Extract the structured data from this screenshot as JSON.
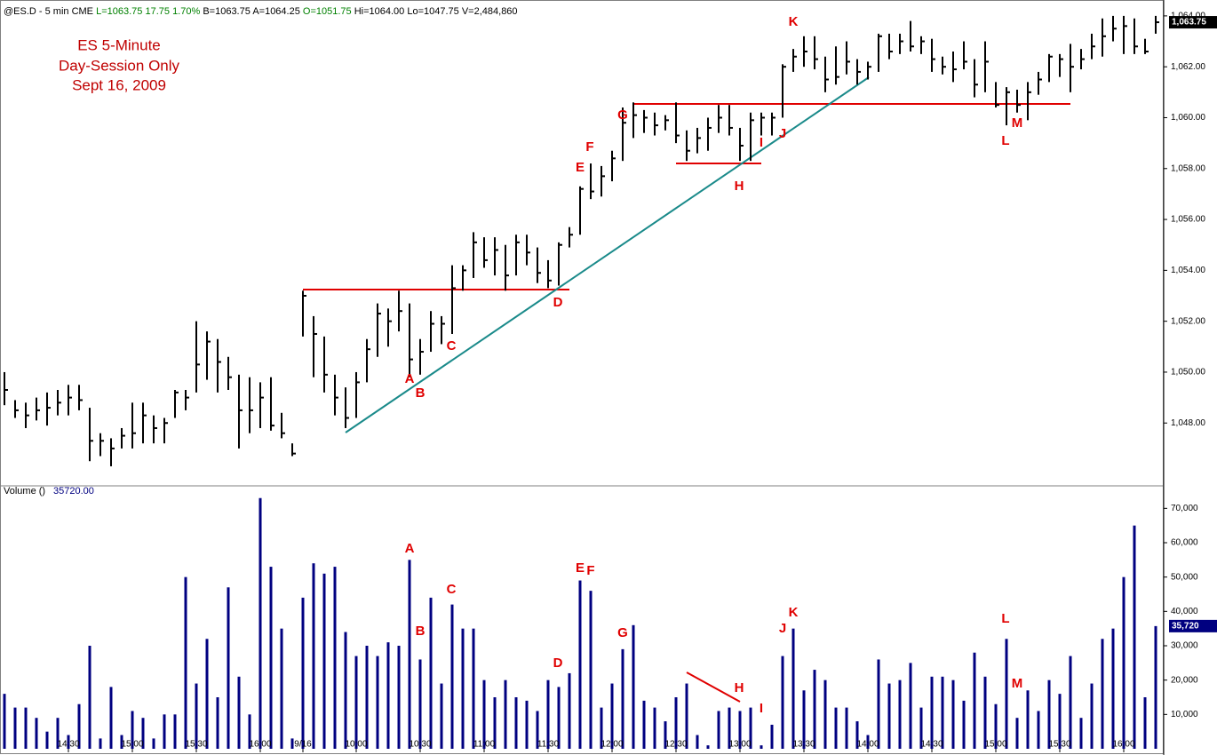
{
  "header": {
    "symbol": "@ES.D - 5 min",
    "exchange": "CME",
    "last": "L=1063.75",
    "change": "17.75",
    "percent": "1.70%",
    "bid": "B=1063.75",
    "ask": "A=1064.25",
    "open": "O=1051.75",
    "high": "Hi=1064.00",
    "low": "Lo=1047.75",
    "volume": "V=2,484,860"
  },
  "chart_data": [
    {
      "type": "ohlc",
      "title": [
        "ES 5-Minute",
        "Day-Session Only",
        "Sept 16, 2009"
      ],
      "color": "#000000",
      "high": [
        1050.0,
        1048.9,
        1048.8,
        1049.0,
        1049.2,
        1049.3,
        1049.5,
        1049.5,
        1048.6,
        1047.6,
        1047.4,
        1047.8,
        1048.8,
        1048.8,
        1048.3,
        1048.2,
        1049.3,
        1049.3,
        1052.0,
        1051.6,
        1051.3,
        1050.6,
        1049.9,
        1049.8,
        1049.6,
        1049.8,
        1048.4,
        1047.2,
        1053.2,
        1052.2,
        1051.4,
        1049.9,
        1049.4,
        1050.0,
        1051.3,
        1052.7,
        1052.5,
        1053.2,
        1052.7,
        1051.3,
        1052.4,
        1052.2,
        1054.2,
        1054.2,
        1055.5,
        1055.3,
        1055.3,
        1055.0,
        1055.4,
        1055.4,
        1054.9,
        1054.4,
        1055.1,
        1055.7,
        1057.3,
        1058.2,
        1058.1,
        1058.7,
        1060.4,
        1060.6,
        1060.3,
        1060.2,
        1060.1,
        1060.6,
        1059.5,
        1059.6,
        1060.0,
        1060.5,
        1060.5,
        1059.6,
        1060.2,
        1060.2,
        1060.2,
        1062.1,
        1062.7,
        1063.2,
        1063.2,
        1062.4,
        1062.8,
        1063.0,
        1062.3,
        1062.2,
        1063.3,
        1063.3,
        1063.3,
        1063.8,
        1063.2,
        1063.1,
        1062.4,
        1062.6,
        1063.0,
        1062.3,
        1063.0,
        1061.4,
        1061.2,
        1061.1,
        1061.4,
        1061.8,
        1062.5,
        1062.5,
        1062.9,
        1062.7,
        1063.3,
        1063.9,
        1064.0,
        1064.0,
        1063.9,
        1063.1,
        1064.0
      ],
      "low": [
        1048.7,
        1048.2,
        1047.8,
        1048.1,
        1047.9,
        1048.3,
        1048.3,
        1048.5,
        1046.5,
        1046.7,
        1046.3,
        1047.0,
        1047.0,
        1047.2,
        1047.2,
        1047.2,
        1048.2,
        1048.5,
        1049.2,
        1049.7,
        1049.2,
        1049.3,
        1047.0,
        1047.6,
        1047.8,
        1047.7,
        1047.4,
        1046.7,
        1051.4,
        1049.8,
        1049.2,
        1048.3,
        1047.8,
        1048.2,
        1049.6,
        1050.6,
        1051.0,
        1051.6,
        1049.8,
        1049.9,
        1050.8,
        1051.1,
        1051.5,
        1053.2,
        1053.7,
        1054.1,
        1053.8,
        1053.2,
        1053.8,
        1054.2,
        1053.5,
        1053.3,
        1053.4,
        1054.9,
        1055.4,
        1056.8,
        1056.9,
        1057.5,
        1058.3,
        1059.2,
        1059.4,
        1059.3,
        1059.5,
        1059.0,
        1058.3,
        1058.6,
        1058.7,
        1059.4,
        1059.3,
        1058.3,
        1058.3,
        1059.3,
        1059.3,
        1060.0,
        1061.8,
        1062.0,
        1061.9,
        1061.0,
        1061.3,
        1061.7,
        1061.3,
        1061.5,
        1061.8,
        1062.3,
        1062.5,
        1062.6,
        1062.5,
        1061.8,
        1061.7,
        1061.4,
        1061.9,
        1060.8,
        1061.0,
        1060.4,
        1059.7,
        1060.2,
        1059.9,
        1060.9,
        1061.4,
        1061.6,
        1061.0,
        1061.9,
        1062.3,
        1062.4,
        1063.0,
        1062.5,
        1062.5,
        1062.5,
        1063.3
      ],
      "close": [
        1049.3,
        1048.5,
        1048.3,
        1048.5,
        1048.6,
        1048.8,
        1049.0,
        1048.9,
        1047.3,
        1047.3,
        1047.0,
        1047.5,
        1047.6,
        1048.3,
        1047.8,
        1048.0,
        1049.2,
        1049.0,
        1050.3,
        1051.2,
        1050.4,
        1049.8,
        1048.5,
        1048.5,
        1049.0,
        1047.9,
        1047.6,
        1046.8,
        1053.0,
        1051.5,
        1049.9,
        1049.0,
        1048.2,
        1049.6,
        1050.9,
        1052.3,
        1052.0,
        1052.4,
        1050.5,
        1050.8,
        1051.9,
        1051.9,
        1053.3,
        1054.0,
        1055.1,
        1054.4,
        1054.8,
        1053.8,
        1055.1,
        1054.7,
        1053.9,
        1053.6,
        1055.0,
        1055.4,
        1057.2,
        1057.1,
        1057.7,
        1058.4,
        1059.8,
        1060.1,
        1060.0,
        1059.7,
        1059.9,
        1059.3,
        1058.7,
        1059.2,
        1059.6,
        1060.0,
        1059.6,
        1058.9,
        1059.9,
        1060.0,
        1060.0,
        1062.0,
        1062.4,
        1062.6,
        1062.3,
        1061.5,
        1061.6,
        1062.2,
        1061.8,
        1062.0,
        1063.2,
        1062.6,
        1063.0,
        1062.8,
        1063.0,
        1062.3,
        1062.0,
        1061.9,
        1062.2,
        1061.3,
        1062.2,
        1060.5,
        1061.0,
        1060.5,
        1061.0,
        1061.5,
        1062.4,
        1062.3,
        1062.0,
        1062.3,
        1062.8,
        1063.2,
        1063.5,
        1063.6,
        1062.8,
        1062.6,
        1063.75
      ],
      "last_value_label": "1,063.75",
      "ylim": [
        1045.6,
        1064.45
      ],
      "yticks": [
        {
          "value": 1048,
          "label": "1,048.00"
        },
        {
          "value": 1050,
          "label": "1,050.00"
        },
        {
          "value": 1052,
          "label": "1,052.00"
        },
        {
          "value": 1054,
          "label": "1,054.00"
        },
        {
          "value": 1056,
          "label": "1,056.00"
        },
        {
          "value": 1058,
          "label": "1,058.00"
        },
        {
          "value": 1060,
          "label": "1,060.00"
        },
        {
          "value": 1062,
          "label": "1,062.00"
        },
        {
          "value": 1064,
          "label": "1,064.00"
        }
      ],
      "annotations": [
        "K",
        "G",
        "F",
        "E",
        "I",
        "J",
        "H",
        "D",
        "C",
        "A",
        "B",
        "L",
        "M"
      ]
    },
    {
      "type": "bar",
      "title": "Volume ()",
      "title_value": "35720.00",
      "color": "#000080",
      "categories": [
        null,
        null,
        null,
        null,
        null,
        null,
        "14:30",
        null,
        null,
        null,
        null,
        null,
        "15:00",
        null,
        null,
        null,
        null,
        null,
        "15:30",
        null,
        null,
        null,
        null,
        null,
        "16:00",
        null,
        null,
        null,
        "9/16",
        null,
        null,
        null,
        null,
        "10:00",
        null,
        null,
        null,
        null,
        null,
        "10:30",
        null,
        null,
        null,
        null,
        null,
        "11:00",
        null,
        null,
        null,
        null,
        null,
        "11:30",
        null,
        null,
        null,
        null,
        null,
        "12:00",
        null,
        null,
        null,
        null,
        null,
        "12:30",
        null,
        null,
        null,
        null,
        null,
        "13:00",
        null,
        null,
        null,
        null,
        null,
        "13:30",
        null,
        null,
        null,
        null,
        null,
        "14:00",
        null,
        null,
        null,
        null,
        null,
        "14:30",
        null,
        null,
        null,
        null,
        null,
        "15:00",
        null,
        null,
        null,
        null,
        null,
        "15:30",
        null,
        null,
        null,
        null,
        null,
        "16:00",
        null,
        null,
        null
      ],
      "values": [
        16000,
        12000,
        12000,
        9000,
        5000,
        9000,
        4000,
        13000,
        30000,
        3000,
        18000,
        4000,
        11000,
        9000,
        3000,
        10000,
        10000,
        50000,
        19000,
        32000,
        15000,
        47000,
        21000,
        10000,
        73000,
        53000,
        35000,
        3000,
        44000,
        54000,
        51000,
        53000,
        34000,
        27000,
        30000,
        27000,
        31000,
        30000,
        55000,
        26000,
        44000,
        19000,
        42000,
        35000,
        35000,
        20000,
        15000,
        20000,
        15000,
        14000,
        11000,
        20000,
        18000,
        22000,
        49000,
        46000,
        12000,
        19000,
        29000,
        36000,
        14000,
        12000,
        8000,
        15000,
        19000,
        4000,
        1000,
        11000,
        12000,
        11000,
        12000,
        1000,
        7000,
        27000,
        35000,
        17000,
        23000,
        20000,
        12000,
        12000,
        8000,
        4000,
        26000,
        19000,
        20000,
        25000,
        12000,
        21000,
        21000,
        20000,
        14000,
        28000,
        21000,
        13000,
        32000,
        9000,
        17000,
        11000,
        20000,
        16000,
        27000,
        9000,
        19000,
        32000,
        35000,
        50000,
        65000,
        15000,
        35720
      ],
      "last_value_label": "35,720",
      "ylim": [
        0,
        75000
      ],
      "yticks": [
        {
          "value": 10000,
          "label": "10,000"
        },
        {
          "value": 20000,
          "label": "20,000"
        },
        {
          "value": 30000,
          "label": "30,000"
        },
        {
          "value": 40000,
          "label": "40,000"
        },
        {
          "value": 50000,
          "label": "50,000"
        },
        {
          "value": 60000,
          "label": "60,000"
        },
        {
          "value": 70000,
          "label": "70,000"
        }
      ],
      "annotations": [
        "A",
        "B",
        "C",
        "D",
        "E",
        "F",
        "G",
        "H",
        "I",
        "J",
        "K",
        "L",
        "M"
      ]
    }
  ]
}
